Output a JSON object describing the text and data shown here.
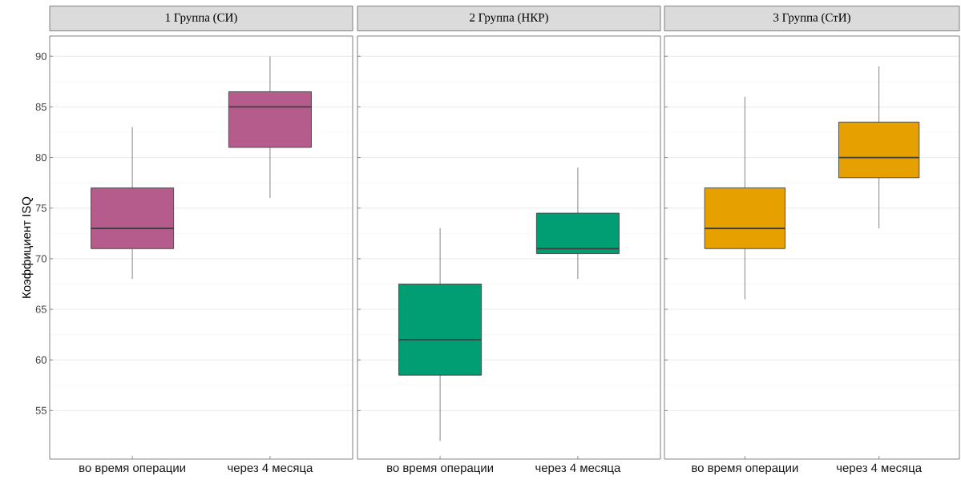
{
  "chart_data": [
    {
      "type": "box",
      "title": "1 Группа (СИ)",
      "ylabel": "Коэффициент ISQ",
      "categories": [
        "во время операции",
        "через 4 месяца"
      ],
      "color": "#b65c8c",
      "boxes": [
        {
          "low": 68,
          "q1": 71,
          "median": 73,
          "q3": 77,
          "high": 83
        },
        {
          "low": 76,
          "q1": 81,
          "median": 85,
          "q3": 86.5,
          "high": 90
        }
      ],
      "ylim": [
        50.2,
        92
      ],
      "yticks": [
        55,
        60,
        65,
        70,
        75,
        80,
        85,
        90
      ],
      "grid": "y"
    },
    {
      "type": "box",
      "title": "2 Группа (НКР)",
      "categories": [
        "во время операции",
        "через 4 месяца"
      ],
      "color": "#019e73",
      "boxes": [
        {
          "low": 52,
          "q1": 58.5,
          "median": 62,
          "q3": 67.5,
          "high": 73
        },
        {
          "low": 68,
          "q1": 70.5,
          "median": 71,
          "q3": 74.5,
          "high": 79
        }
      ],
      "ylim": [
        50.2,
        92
      ],
      "yticks": [
        55,
        60,
        65,
        70,
        75,
        80,
        85,
        90
      ],
      "grid": "y",
      "tick_labels": "x"
    },
    {
      "type": "box",
      "title": "3 Группа (СтИ)",
      "categories": [
        "во время операции",
        "через 4 месяца"
      ],
      "color": "#e6a000",
      "boxes": [
        {
          "low": 66,
          "q1": 71,
          "median": 73,
          "q3": 77,
          "high": 86
        },
        {
          "low": 73,
          "q1": 78,
          "median": 80,
          "q3": 83.5,
          "high": 89
        }
      ],
      "ylim": [
        50.2,
        92
      ],
      "yticks": [
        55,
        60,
        65,
        70,
        75,
        80,
        85,
        90
      ],
      "grid": "y",
      "tick_labels": "x"
    }
  ]
}
